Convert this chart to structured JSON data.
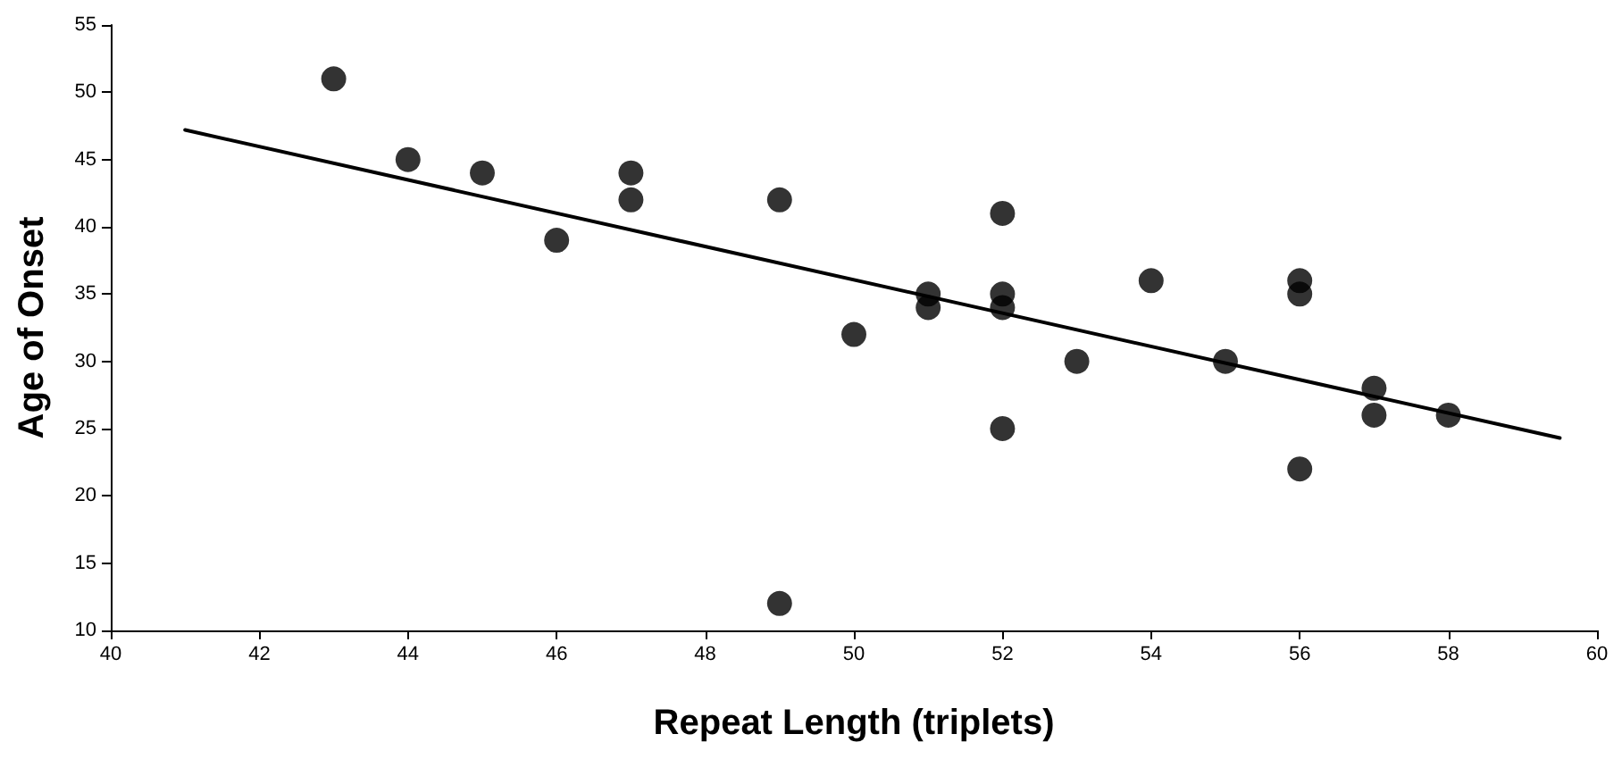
{
  "chart_data": {
    "type": "scatter",
    "xlabel": "Repeat Length (triplets)",
    "ylabel": "Age of Onset",
    "xlim": [
      40,
      60
    ],
    "xticks": [
      40,
      42,
      44,
      46,
      48,
      50,
      52,
      54,
      56,
      58,
      60
    ],
    "ylim": [
      10,
      55
    ],
    "yticks": [
      10,
      15,
      20,
      25,
      30,
      35,
      40,
      45,
      50,
      55
    ],
    "grid": false,
    "marker": "circle",
    "series": [
      {
        "color": "#000000",
        "x": [
          43,
          44,
          45,
          46,
          47,
          47,
          49,
          49,
          50,
          51,
          51,
          52,
          52,
          52,
          52,
          53,
          54,
          55,
          56,
          56,
          56,
          57,
          57,
          58
        ],
        "values": [
          51,
          45,
          44,
          39,
          44,
          42,
          42,
          12,
          32,
          35,
          34,
          41,
          35,
          34,
          25,
          30,
          36,
          30,
          36,
          35,
          22,
          28,
          26,
          26
        ]
      },
      {
        "type": "line",
        "color": "#000000",
        "line_style": "solid",
        "marker": "none",
        "x": [
          41,
          59.5
        ],
        "values": [
          47.2,
          24.3
        ]
      }
    ]
  }
}
